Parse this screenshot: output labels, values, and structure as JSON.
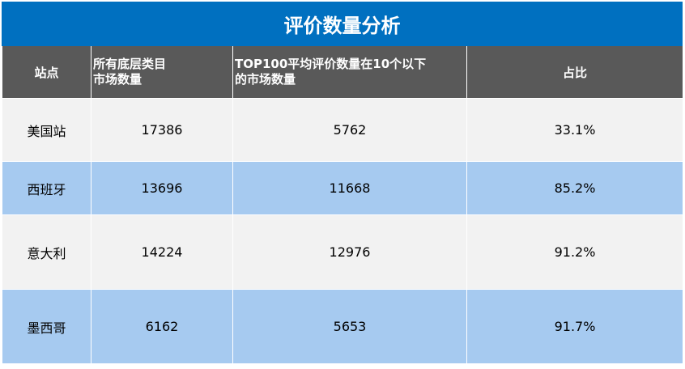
{
  "title": "评价数量分析",
  "table": {
    "header": [
      [
        "站点"
      ],
      [
        "所有底层类目",
        "市场数量"
      ],
      [
        "TOP100平均评价数量在10个以下",
        "的市场数量"
      ],
      [
        "占比"
      ]
    ],
    "rows": [
      [
        "美国站",
        "17386",
        "5762",
        "33.1%"
      ],
      [
        "西班牙",
        "13696",
        "11668",
        "85.2%"
      ],
      [
        "意大利",
        "14224",
        "12976",
        "91.2%"
      ],
      [
        "墨西哥",
        "6162",
        "5653",
        "91.7%"
      ]
    ]
  }
}
